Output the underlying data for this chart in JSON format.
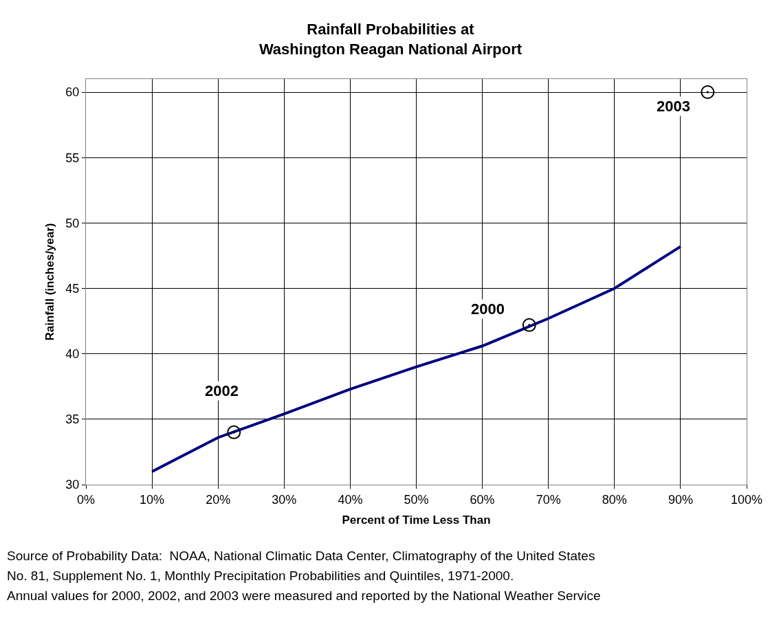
{
  "chart_data": {
    "type": "line",
    "title": "Rainfall Probabilities at\nWashington Reagan National Airport",
    "xlabel": "Percent of Time Less Than",
    "ylabel": "Rainfall (inches/year)",
    "series": [
      {
        "color": "#000080",
        "x": [
          10,
          20,
          30,
          40,
          50,
          60,
          70,
          80,
          90
        ],
        "values": [
          31.0,
          33.6,
          35.4,
          37.3,
          39.0,
          40.6,
          42.7,
          45.0,
          48.2
        ],
        "marker": "none",
        "line_style": "solid"
      },
      {
        "type": "scatter",
        "color": "#000000",
        "x": [
          22.4,
          67.1,
          94.1
        ],
        "values": [
          34.0,
          42.2,
          60.0
        ],
        "marker": "circle"
      }
    ],
    "annotations": [
      {
        "text": "2002",
        "x": 22.4,
        "y": 34.0
      },
      {
        "text": "2000",
        "x": 67.1,
        "y": 42.2
      },
      {
        "text": "2003",
        "x": 94.1,
        "y": 60.0
      },
      "Source of Probability Data:  NOAA, National Climatic Data Center, Climatography of the United States",
      "No. 81, Supplement No. 1, Monthly Precipitation Probabilities and Quintiles, 1971-2000.",
      "Annual values for 2000, 2002, and 2003 were measured and reported by the National Weather Service"
    ],
    "xlim": [
      0,
      100
    ],
    "xticks": [
      {
        "value": 0,
        "label": "0%"
      },
      {
        "value": 10,
        "label": "10%"
      },
      {
        "value": 20,
        "label": "20%"
      },
      {
        "value": 30,
        "label": "30%"
      },
      {
        "value": 40,
        "label": "40%"
      },
      {
        "value": 50,
        "label": "50%"
      },
      {
        "value": 60,
        "label": "60%"
      },
      {
        "value": 70,
        "label": "70%"
      },
      {
        "value": 80,
        "label": "80%"
      },
      {
        "value": 90,
        "label": "90%"
      },
      {
        "value": 100,
        "label": "100%"
      }
    ],
    "ylim": [
      30,
      61
    ],
    "yticks": [
      30,
      35,
      40,
      45,
      50,
      55,
      60
    ],
    "grid": true
  }
}
